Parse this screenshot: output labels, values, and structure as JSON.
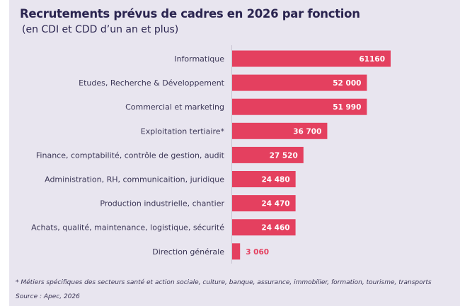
{
  "title": "Recrutements prévus de cadres en 2026 par fonction",
  "subtitle": "(en CDI et CDD d’un an et plus)",
  "footnote": "* Métiers spécifiques des secteurs santé et action sociale, culture, banque, assurance, immobilier, formation, tourisme, transports",
  "source": "Source : Apec, 2026",
  "chart_data": {
    "type": "bar",
    "orientation": "horizontal",
    "title": "Recrutements prévus de cadres en 2026 par fonction",
    "subtitle": "(en CDI et CDD d’un an et plus)",
    "categories": [
      "Informatique",
      "Etudes, Recherche & Développement",
      "Commercial et marketing",
      "Exploitation tertiaire*",
      "Finance, comptabilité, contrôle de gestion, audit",
      "Administration, RH, communicaition, juridique",
      "Production industrielle, chantier",
      "Achats, qualité, maintenance, logistique, sécurité",
      "Direction générale"
    ],
    "values": [
      61160,
      52000,
      51990,
      36700,
      27520,
      24480,
      24470,
      24460,
      3060
    ],
    "data_labels": [
      "61160",
      "52 000",
      "51 990",
      "36 700",
      "27 520",
      "24 480",
      "24 470",
      "24 460",
      "3 060"
    ],
    "xlim": [
      0,
      61160
    ],
    "grid": false,
    "colors": {
      "bar": "#e4405f",
      "label_inside": "#ffffff",
      "label_outside": "#e4405f"
    }
  }
}
